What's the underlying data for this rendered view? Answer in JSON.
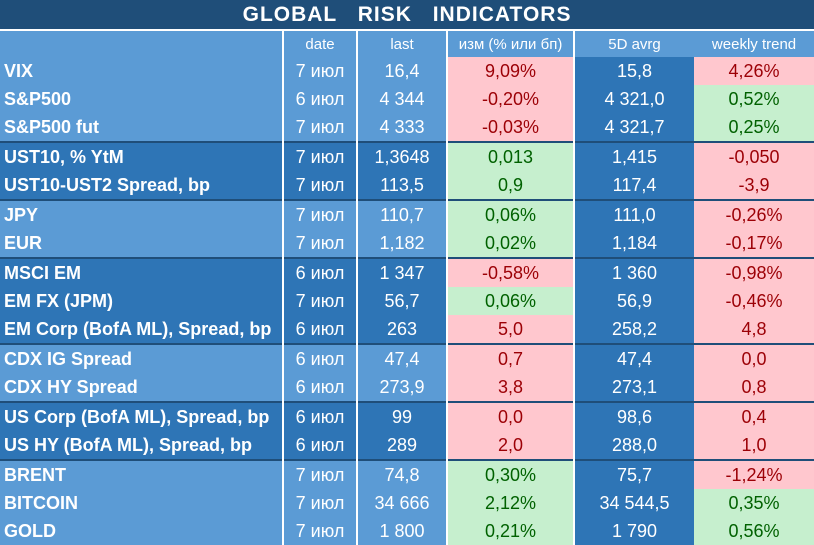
{
  "title": "GLOBAL   RISK   INDICATORS",
  "headers": {
    "date": "date",
    "last": "last",
    "change": "изм (% или бп)",
    "avg": "5D avrg",
    "trend": "weekly trend"
  },
  "colors": {
    "title_bg": "#1f4e79",
    "light_band": "#5b9bd5",
    "dark_band": "#2e75b6",
    "negative_bg": "#ffc7ce",
    "negative_text": "#9c0006",
    "positive_bg": "#c6efce",
    "positive_text": "#006100"
  },
  "rows": [
    {
      "name": "VIX",
      "date": "7 июл",
      "last": "16,4",
      "change": "9,09%",
      "avg": "15,8",
      "trend": "4,26%",
      "change_sign": "neg",
      "trend_sign": "neg",
      "band": "light"
    },
    {
      "name": "S&P500",
      "date": "6 июл",
      "last": "4 344",
      "change": "-0,20%",
      "avg": "4 321,0",
      "trend": "0,52%",
      "change_sign": "neg",
      "trend_sign": "pos",
      "band": "light"
    },
    {
      "name": "S&P500 fut",
      "date": "7 июл",
      "last": "4 333",
      "change": "-0,03%",
      "avg": "4 321,7",
      "trend": "0,25%",
      "change_sign": "neg",
      "trend_sign": "pos",
      "band": "light"
    },
    {
      "name": "UST10, % YtM",
      "date": "7 июл",
      "last": "1,3648",
      "change": "0,013",
      "avg": "1,415",
      "trend": "-0,050",
      "change_sign": "pos",
      "trend_sign": "neg",
      "band": "dark"
    },
    {
      "name": "UST10-UST2 Spread, bp",
      "date": "7 июл",
      "last": "113,5",
      "change": "0,9",
      "avg": "117,4",
      "trend": "-3,9",
      "change_sign": "pos",
      "trend_sign": "neg",
      "band": "dark"
    },
    {
      "name": "JPY",
      "date": "7 июл",
      "last": "110,7",
      "change": "0,06%",
      "avg": "111,0",
      "trend": "-0,26%",
      "change_sign": "pos",
      "trend_sign": "neg",
      "band": "light"
    },
    {
      "name": "EUR",
      "date": "7 июл",
      "last": "1,182",
      "change": "0,02%",
      "avg": "1,184",
      "trend": "-0,17%",
      "change_sign": "pos",
      "trend_sign": "neg",
      "band": "light"
    },
    {
      "name": "MSCI EM",
      "date": "6 июл",
      "last": "1 347",
      "change": "-0,58%",
      "avg": "1 360",
      "trend": "-0,98%",
      "change_sign": "neg",
      "trend_sign": "neg",
      "band": "dark"
    },
    {
      "name": "EM FX (JPM)",
      "date": "7 июл",
      "last": "56,7",
      "change": "0,06%",
      "avg": "56,9",
      "trend": "-0,46%",
      "change_sign": "pos",
      "trend_sign": "neg",
      "band": "dark"
    },
    {
      "name": "EM Corp (BofA ML), Spread, bp",
      "date": "6 июл",
      "last": "263",
      "change": "5,0",
      "avg": "258,2",
      "trend": "4,8",
      "change_sign": "neg",
      "trend_sign": "neg",
      "band": "dark"
    },
    {
      "name": "CDX IG Spread",
      "date": "6 июл",
      "last": "47,4",
      "change": "0,7",
      "avg": "47,4",
      "trend": "0,0",
      "change_sign": "neg",
      "trend_sign": "neg",
      "band": "light"
    },
    {
      "name": "CDX HY Spread",
      "date": "6 июл",
      "last": "273,9",
      "change": "3,8",
      "avg": "273,1",
      "trend": "0,8",
      "change_sign": "neg",
      "trend_sign": "neg",
      "band": "light"
    },
    {
      "name": "US Corp (BofA ML), Spread, bp",
      "date": "6 июл",
      "last": "99",
      "change": "0,0",
      "avg": "98,6",
      "trend": "0,4",
      "change_sign": "neg",
      "trend_sign": "neg",
      "band": "dark"
    },
    {
      "name": "US HY (BofA ML), Spread, bp",
      "date": "6 июл",
      "last": "289",
      "change": "2,0",
      "avg": "288,0",
      "trend": "1,0",
      "change_sign": "neg",
      "trend_sign": "neg",
      "band": "dark"
    },
    {
      "name": "BRENT",
      "date": "7 июл",
      "last": "74,8",
      "change": "0,30%",
      "avg": "75,7",
      "trend": "-1,24%",
      "change_sign": "pos",
      "trend_sign": "neg",
      "band": "light"
    },
    {
      "name": "BITCOIN",
      "date": "7 июл",
      "last": "34 666",
      "change": "2,12%",
      "avg": "34 544,5",
      "trend": "0,35%",
      "change_sign": "pos",
      "trend_sign": "pos",
      "band": "light"
    },
    {
      "name": "GOLD",
      "date": "7 июл",
      "last": "1 800",
      "change": "0,21%",
      "avg": "1 790",
      "trend": "0,56%",
      "change_sign": "pos",
      "trend_sign": "pos",
      "band": "light"
    }
  ]
}
